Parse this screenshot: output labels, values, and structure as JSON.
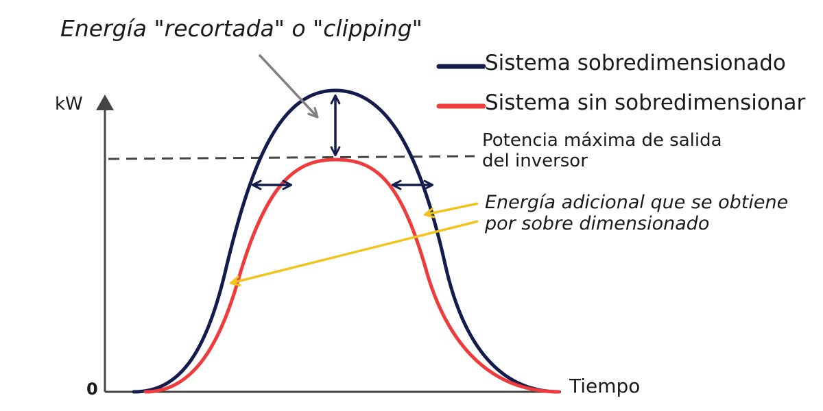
{
  "diagram": {
    "clipping_label": "Energía \"recortada\" o \"clipping\"",
    "legend": {
      "oversized": {
        "label": "Sistema sobredimensionado",
        "color": "#141b4d"
      },
      "not_oversized": {
        "label": "Sistema sin sobredimensionar",
        "color": "#ee3b3b"
      }
    },
    "inverter_limit": {
      "line1": "Potencia máxima de salida",
      "line2": "del inversor"
    },
    "extra_energy": {
      "line1": "Energía adicional que se obtiene",
      "line2": "por sobre dimensionado",
      "color": "#f2c31b"
    },
    "axes": {
      "y_label": "kW",
      "x_label": "Tiempo",
      "origin_label": "0"
    },
    "colors": {
      "axis": "#444444",
      "pointer_arrow": "#808080",
      "dimension_arrow": "#141b4d"
    }
  }
}
